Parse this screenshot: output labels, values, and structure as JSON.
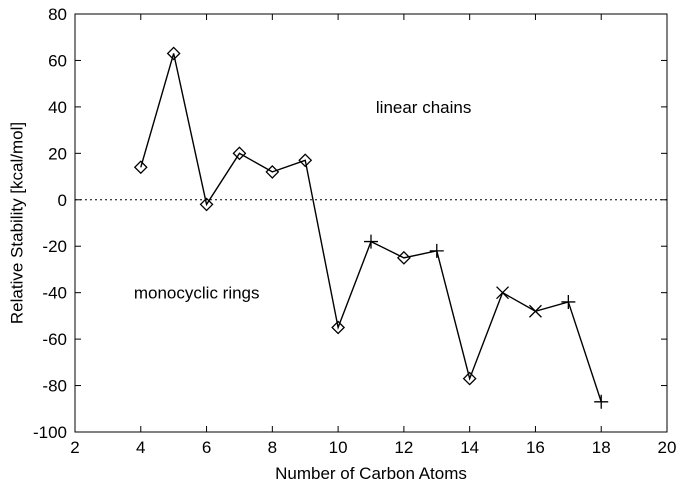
{
  "chart_data": {
    "type": "line",
    "title": "",
    "xlabel": "Number of Carbon Atoms",
    "ylabel": "Relative Stability [kcal/mol]",
    "xlim": [
      2,
      20
    ],
    "ylim": [
      -100,
      80
    ],
    "xticks": [
      2,
      4,
      6,
      8,
      10,
      12,
      14,
      16,
      18,
      20
    ],
    "yticks": [
      -100,
      -80,
      -60,
      -40,
      -20,
      0,
      20,
      40,
      60,
      80
    ],
    "grid": false,
    "reference_line": {
      "y": 0,
      "style": "dotted"
    },
    "series": [
      {
        "color": "#000000",
        "points": [
          {
            "x": 4,
            "y": 14,
            "marker": "diamond"
          },
          {
            "x": 5,
            "y": 63,
            "marker": "diamond"
          },
          {
            "x": 6,
            "y": -2,
            "marker": "diamond"
          },
          {
            "x": 7,
            "y": 20,
            "marker": "diamond"
          },
          {
            "x": 8,
            "y": 12,
            "marker": "diamond"
          },
          {
            "x": 9,
            "y": 17,
            "marker": "diamond"
          },
          {
            "x": 10,
            "y": -55,
            "marker": "diamond"
          },
          {
            "x": 11,
            "y": -18,
            "marker": "plus"
          },
          {
            "x": 12,
            "y": -25,
            "marker": "diamond"
          },
          {
            "x": 13,
            "y": -22,
            "marker": "plus"
          },
          {
            "x": 14,
            "y": -77,
            "marker": "diamond"
          },
          {
            "x": 15,
            "y": -40,
            "marker": "cross"
          },
          {
            "x": 16,
            "y": -48,
            "marker": "cross"
          },
          {
            "x": 17,
            "y": -44,
            "marker": "plus"
          },
          {
            "x": 18,
            "y": -87,
            "marker": "plus"
          }
        ]
      }
    ],
    "annotations": [
      {
        "text": "linear chains",
        "x": 12.6,
        "y": 40
      },
      {
        "text": "monocyclic rings",
        "x": 5.7,
        "y": -40
      }
    ]
  }
}
